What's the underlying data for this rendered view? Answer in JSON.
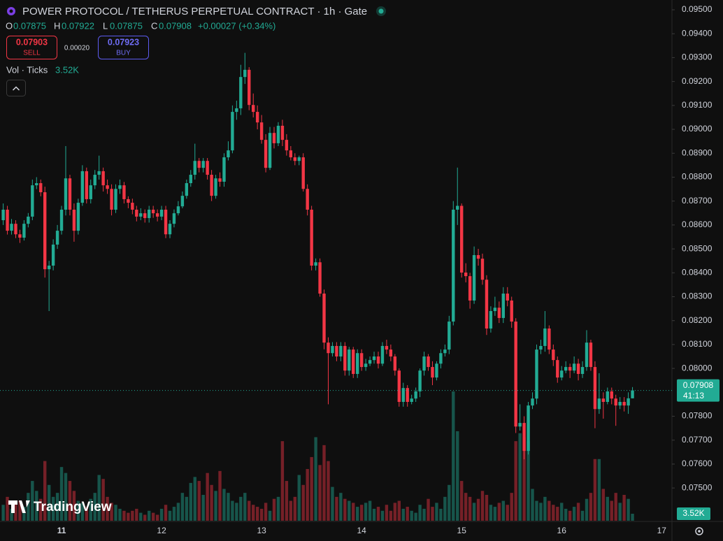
{
  "header": {
    "title": "POWER PROTOCOL / TETHERUS PERPETUAL CONTRACT · 1h · Gate",
    "ohlc": [
      {
        "key": "O",
        "value": "0.07875"
      },
      {
        "key": "H",
        "value": "0.07922"
      },
      {
        "key": "L",
        "value": "0.07875"
      },
      {
        "key": "C",
        "value": "0.07908"
      }
    ],
    "change": "+0.00027 (+0.34%)",
    "sell": {
      "price": "0.07903",
      "label": "SELL"
    },
    "spread": "0.00020",
    "buy": {
      "price": "0.07923",
      "label": "BUY"
    },
    "volume_legend": {
      "label": "Vol · Ticks",
      "value": "3.52K"
    },
    "countdown": "41:13",
    "logo": "TradingView"
  },
  "chart_data": {
    "type": "candlestick",
    "up_color": "#22ab94",
    "down_color": "#f23645",
    "grid": false,
    "ylim": [
      0.07363,
      0.09541
    ],
    "yticks": [
      {
        "value": 0.095,
        "label": "0.09500"
      },
      {
        "value": 0.094,
        "label": "0.09400"
      },
      {
        "value": 0.093,
        "label": "0.09300"
      },
      {
        "value": 0.092,
        "label": "0.09200"
      },
      {
        "value": 0.091,
        "label": "0.09100"
      },
      {
        "value": 0.09,
        "label": "0.09000"
      },
      {
        "value": 0.089,
        "label": "0.08900"
      },
      {
        "value": 0.088,
        "label": "0.08800"
      },
      {
        "value": 0.087,
        "label": "0.08700"
      },
      {
        "value": 0.086,
        "label": "0.08600"
      },
      {
        "value": 0.085,
        "label": "0.08500"
      },
      {
        "value": 0.084,
        "label": "0.08400"
      },
      {
        "value": 0.083,
        "label": "0.08300"
      },
      {
        "value": 0.082,
        "label": "0.08200"
      },
      {
        "value": 0.081,
        "label": "0.08100"
      },
      {
        "value": 0.08,
        "label": "0.08000"
      },
      {
        "value": 0.078,
        "label": "0.07800"
      },
      {
        "value": 0.077,
        "label": "0.07700"
      },
      {
        "value": 0.076,
        "label": "0.07600"
      },
      {
        "value": 0.075,
        "label": "0.07500"
      }
    ],
    "categories": [
      null,
      null,
      null,
      null,
      null,
      null,
      null,
      null,
      null,
      null,
      null,
      null,
      null,
      null,
      "11",
      null,
      null,
      null,
      null,
      null,
      null,
      null,
      null,
      null,
      null,
      null,
      null,
      null,
      null,
      null,
      null,
      null,
      null,
      null,
      null,
      null,
      null,
      null,
      "12",
      null,
      null,
      null,
      null,
      null,
      null,
      null,
      null,
      null,
      null,
      null,
      null,
      null,
      null,
      null,
      null,
      null,
      null,
      null,
      null,
      null,
      null,
      null,
      "13",
      null,
      null,
      null,
      null,
      null,
      null,
      null,
      null,
      null,
      null,
      null,
      null,
      null,
      null,
      null,
      null,
      null,
      null,
      null,
      null,
      null,
      null,
      null,
      "14",
      null,
      null,
      null,
      null,
      null,
      null,
      null,
      null,
      null,
      null,
      null,
      null,
      null,
      null,
      null,
      null,
      null,
      null,
      null,
      null,
      null,
      null,
      null,
      "15",
      null,
      null,
      null,
      null,
      null,
      null,
      null,
      null,
      null,
      null,
      null,
      null,
      null,
      null,
      null,
      null,
      null,
      null,
      null,
      null,
      null,
      null,
      null,
      "16",
      null,
      null,
      null,
      null,
      null,
      null,
      null,
      null,
      null,
      null,
      null,
      null,
      null,
      null,
      null,
      null,
      null,
      null,
      null,
      null,
      null,
      null,
      null,
      "17"
    ],
    "open": [
      0.0862,
      0.08664,
      0.08576,
      0.08605,
      0.08561,
      0.08547,
      0.08605,
      0.08635,
      0.08766,
      0.08775,
      0.08737,
      0.08415,
      0.0843,
      0.08518,
      0.08576,
      0.08664,
      0.08795,
      0.08664,
      0.08576,
      0.08693,
      0.08825,
      0.08708,
      0.08766,
      0.0881,
      0.08825,
      0.08766,
      0.08751,
      0.08664,
      0.08751,
      0.08766,
      0.08708,
      0.08693,
      0.08664,
      0.08635,
      0.08649,
      0.08629,
      0.08664,
      0.08649,
      0.08635,
      0.08664,
      0.08561,
      0.08605,
      0.08649,
      0.08678,
      0.08722,
      0.08775,
      0.0881,
      0.08868,
      0.08839,
      0.08868,
      0.0881,
      0.08722,
      0.08795,
      0.08781,
      0.08883,
      0.08912,
      0.09073,
      0.09088,
      0.09219,
      0.09249,
      0.09102,
      0.09073,
      0.09029,
      0.08956,
      0.08839,
      0.08985,
      0.08942,
      0.09015,
      0.08956,
      0.08912,
      0.08883,
      0.08868,
      0.08883,
      0.08751,
      0.08664,
      0.0843,
      0.08444,
      0.08313,
      0.08108,
      0.08064,
      0.08094,
      0.0805,
      0.08094,
      0.07991,
      0.08079,
      0.07977,
      0.08064,
      0.08006,
      0.0802,
      0.08035,
      0.0805,
      0.0802,
      0.08094,
      0.08079,
      0.0805,
      0.07991,
      0.0786,
      0.07918,
      0.0786,
      0.07874,
      0.07904,
      0.07991,
      0.0805,
      0.08006,
      0.07962,
      0.0802,
      0.08064,
      0.08079,
      0.08196,
      0.08664,
      0.0868,
      0.08401,
      0.08386,
      0.08284,
      0.08474,
      0.08459,
      0.08371,
      0.08167,
      0.0824,
      0.08254,
      0.08211,
      0.08313,
      0.08284,
      0.08196,
      0.07757,
      0.07772,
      0.07655,
      0.07845,
      0.07874,
      0.08079,
      0.08094,
      0.08167,
      0.08079,
      0.08035,
      0.07962,
      0.07991,
      0.08006,
      0.07991,
      0.0802,
      0.07977,
      0.08006,
      0.08108,
      0.08006,
      0.0783,
      0.07874,
      0.0786,
      0.07904,
      0.07874,
      0.07845,
      0.0786,
      0.07845,
      0.07875,
      null,
      null,
      null,
      null,
      null,
      null,
      null
    ],
    "high": [
      0.0869,
      0.0868,
      0.08625,
      0.0862,
      0.0858,
      0.0862,
      0.0865,
      0.0879,
      0.088,
      0.0879,
      0.0876,
      0.0845,
      0.0854,
      0.086,
      0.0868,
      0.0893,
      0.0881,
      0.0869,
      0.0871,
      0.0885,
      0.0884,
      0.0879,
      0.0883,
      0.0889,
      0.0884,
      0.0879,
      0.0877,
      0.0877,
      0.0879,
      0.0878,
      0.0872,
      0.0871,
      0.0868,
      0.0867,
      0.08665,
      0.0868,
      0.0868,
      0.08665,
      0.0868,
      0.0868,
      0.0862,
      0.08665,
      0.087,
      0.0874,
      0.0879,
      0.0883,
      0.0894,
      0.0888,
      0.0888,
      0.0888,
      0.0883,
      0.0881,
      0.0882,
      0.089,
      0.0895,
      0.091,
      0.0912,
      0.0927,
      0.0932,
      0.0926,
      0.0915,
      0.091,
      0.0906,
      0.0898,
      0.0901,
      0.0901,
      0.0903,
      0.0904,
      0.0898,
      0.0893,
      0.089,
      0.0889,
      0.089,
      0.0877,
      0.0868,
      0.0846,
      0.0846,
      0.0833,
      0.0813,
      0.0811,
      0.0811,
      0.0811,
      0.0811,
      0.0809,
      0.0809,
      0.0808,
      0.0808,
      0.0804,
      0.0805,
      0.0807,
      0.0807,
      0.0811,
      0.0812,
      0.081,
      0.0806,
      0.08,
      0.0794,
      0.0793,
      0.0789,
      0.0792,
      0.08,
      0.0807,
      0.0806,
      0.0803,
      0.0803,
      0.0808,
      0.081,
      0.0822,
      0.087,
      0.0884,
      0.0869,
      0.0844,
      0.084,
      0.0851,
      0.085,
      0.0848,
      0.0839,
      0.0826,
      0.083,
      0.0828,
      0.0834,
      0.0834,
      0.083,
      0.0821,
      0.0785,
      0.078,
      0.0786,
      0.079,
      0.081,
      0.0812,
      0.0824,
      0.0818,
      0.081,
      0.0805,
      0.0801,
      0.0803,
      0.0802,
      0.0805,
      0.0804,
      0.0803,
      0.0816,
      0.0812,
      0.0803,
      0.0798,
      0.079,
      0.0792,
      0.0792,
      0.0789,
      0.0788,
      0.0788,
      0.079,
      0.07922,
      null,
      null,
      null,
      null,
      null,
      null,
      null
    ],
    "low": [
      0.086,
      0.0856,
      0.0856,
      0.08545,
      0.08525,
      0.08535,
      0.0859,
      0.0862,
      0.0875,
      0.0872,
      0.0838,
      0.0824,
      0.0841,
      0.085,
      0.0856,
      0.0864,
      0.0864,
      0.0853,
      0.0856,
      0.0868,
      0.0869,
      0.0869,
      0.0875,
      0.0879,
      0.0874,
      0.0873,
      0.0864,
      0.0865,
      0.0873,
      0.0869,
      0.0867,
      0.08645,
      0.08615,
      0.0862,
      0.0861,
      0.0861,
      0.0863,
      0.08615,
      0.0862,
      0.08545,
      0.08545,
      0.0859,
      0.0864,
      0.0867,
      0.0871,
      0.0876,
      0.0879,
      0.0882,
      0.0882,
      0.0879,
      0.087,
      0.0871,
      0.0876,
      0.0876,
      0.0887,
      0.089,
      0.0904,
      0.0906,
      0.0919,
      0.0908,
      0.0905,
      0.09,
      0.0894,
      0.0882,
      0.0883,
      0.0892,
      0.0893,
      0.0893,
      0.0889,
      0.0887,
      0.0885,
      0.0885,
      0.0874,
      0.0864,
      0.0841,
      0.0841,
      0.083,
      0.0808,
      0.0785,
      0.0805,
      0.0803,
      0.0803,
      0.0797,
      0.0797,
      0.0796,
      0.0796,
      0.0799,
      0.0799,
      0.0801,
      0.0802,
      0.08,
      0.0801,
      0.0806,
      0.0803,
      0.0797,
      0.0784,
      0.0784,
      0.0784,
      0.0785,
      0.0786,
      0.0788,
      0.0797,
      0.0799,
      0.0793,
      0.0795,
      0.08,
      0.0805,
      0.0806,
      0.0818,
      0.086,
      0.0838,
      0.0836,
      0.0825,
      0.0827,
      0.0843,
      0.0835,
      0.0814,
      0.0815,
      0.0822,
      0.0819,
      0.0819,
      0.0826,
      0.0817,
      0.0773,
      0.0774,
      0.0762,
      0.0764,
      0.0783,
      0.0785,
      0.0806,
      0.0807,
      0.0806,
      0.0801,
      0.0794,
      0.0795,
      0.0798,
      0.0796,
      0.0798,
      0.0795,
      0.0796,
      0.0799,
      0.0799,
      0.0775,
      0.0781,
      0.0779,
      0.0785,
      0.0785,
      0.0776,
      0.0783,
      0.0782,
      0.0781,
      0.07875,
      null,
      null,
      null,
      null,
      null,
      null,
      null
    ],
    "close": [
      0.08664,
      0.08576,
      0.08605,
      0.08561,
      0.08547,
      0.08605,
      0.08635,
      0.08766,
      0.08775,
      0.08737,
      0.08415,
      0.0843,
      0.08518,
      0.08576,
      0.08664,
      0.08795,
      0.08664,
      0.08576,
      0.08693,
      0.08825,
      0.08708,
      0.08766,
      0.0881,
      0.08825,
      0.08766,
      0.08751,
      0.08664,
      0.08751,
      0.08766,
      0.08708,
      0.08693,
      0.08664,
      0.08635,
      0.08649,
      0.08629,
      0.08664,
      0.08649,
      0.08635,
      0.08664,
      0.08561,
      0.08605,
      0.08649,
      0.08678,
      0.08722,
      0.08775,
      0.0881,
      0.08868,
      0.08839,
      0.08868,
      0.0881,
      0.08722,
      0.08795,
      0.08781,
      0.08883,
      0.08912,
      0.09073,
      0.09088,
      0.09219,
      0.09249,
      0.09102,
      0.09073,
      0.09029,
      0.08956,
      0.08839,
      0.08985,
      0.08942,
      0.09015,
      0.08956,
      0.08912,
      0.08883,
      0.08868,
      0.08883,
      0.08751,
      0.08664,
      0.0843,
      0.08444,
      0.08313,
      0.08108,
      0.08064,
      0.08094,
      0.0805,
      0.08094,
      0.07991,
      0.08079,
      0.07977,
      0.08064,
      0.08006,
      0.0802,
      0.08035,
      0.0805,
      0.0802,
      0.08094,
      0.08079,
      0.0805,
      0.07991,
      0.0786,
      0.07918,
      0.0786,
      0.07874,
      0.07904,
      0.07991,
      0.0805,
      0.08006,
      0.07962,
      0.0802,
      0.08064,
      0.08079,
      0.08196,
      0.08664,
      0.0868,
      0.08401,
      0.08386,
      0.08284,
      0.08474,
      0.08459,
      0.08371,
      0.08167,
      0.0824,
      0.08254,
      0.08211,
      0.08313,
      0.08284,
      0.08196,
      0.07757,
      0.07772,
      0.07655,
      0.07845,
      0.07874,
      0.08079,
      0.08094,
      0.08167,
      0.08079,
      0.08035,
      0.07962,
      0.07991,
      0.08006,
      0.07991,
      0.0802,
      0.07977,
      0.08006,
      0.08108,
      0.08006,
      0.0783,
      0.07874,
      0.0786,
      0.07904,
      0.07874,
      0.07845,
      0.0786,
      0.07845,
      0.07875,
      0.07908,
      null,
      null,
      null,
      null,
      null,
      null,
      null
    ],
    "volume": [
      8000,
      12000,
      6000,
      9000,
      10000,
      7000,
      14000,
      20000,
      15000,
      11000,
      30000,
      18000,
      12000,
      14000,
      27000,
      24000,
      20000,
      15000,
      10000,
      9000,
      7000,
      11000,
      14000,
      23000,
      21000,
      12000,
      9000,
      8000,
      6000,
      5000,
      4000,
      5000,
      6000,
      4000,
      3000,
      5000,
      4000,
      3000,
      6000,
      8000,
      5000,
      7000,
      9000,
      14000,
      12000,
      19000,
      22000,
      20000,
      13000,
      24000,
      18000,
      15000,
      25000,
      16000,
      14000,
      10000,
      9000,
      12000,
      14000,
      10000,
      8000,
      7000,
      6000,
      9000,
      5000,
      11000,
      12000,
      40000,
      20000,
      10000,
      12000,
      23000,
      18000,
      26000,
      32000,
      42000,
      28000,
      38000,
      30000,
      17000,
      12000,
      14000,
      11000,
      10000,
      9000,
      7000,
      8000,
      9000,
      10000,
      6000,
      7000,
      5000,
      8000,
      5000,
      9000,
      10000,
      6000,
      7000,
      5000,
      4000,
      8000,
      6000,
      11000,
      7000,
      9000,
      6000,
      12000,
      18000,
      65000,
      45000,
      20000,
      14000,
      12000,
      9000,
      11000,
      15000,
      13000,
      8000,
      7000,
      9000,
      10000,
      8000,
      14000,
      40000,
      44000,
      42000,
      40000,
      16000,
      10000,
      9000,
      12000,
      10000,
      8000,
      7000,
      9000,
      6000,
      5000,
      7000,
      9000,
      5000,
      11000,
      14000,
      31000,
      31000,
      16000,
      12000,
      10000,
      14000,
      9000,
      13000,
      11000,
      3520,
      null,
      null,
      null,
      null,
      null,
      null,
      null
    ]
  }
}
